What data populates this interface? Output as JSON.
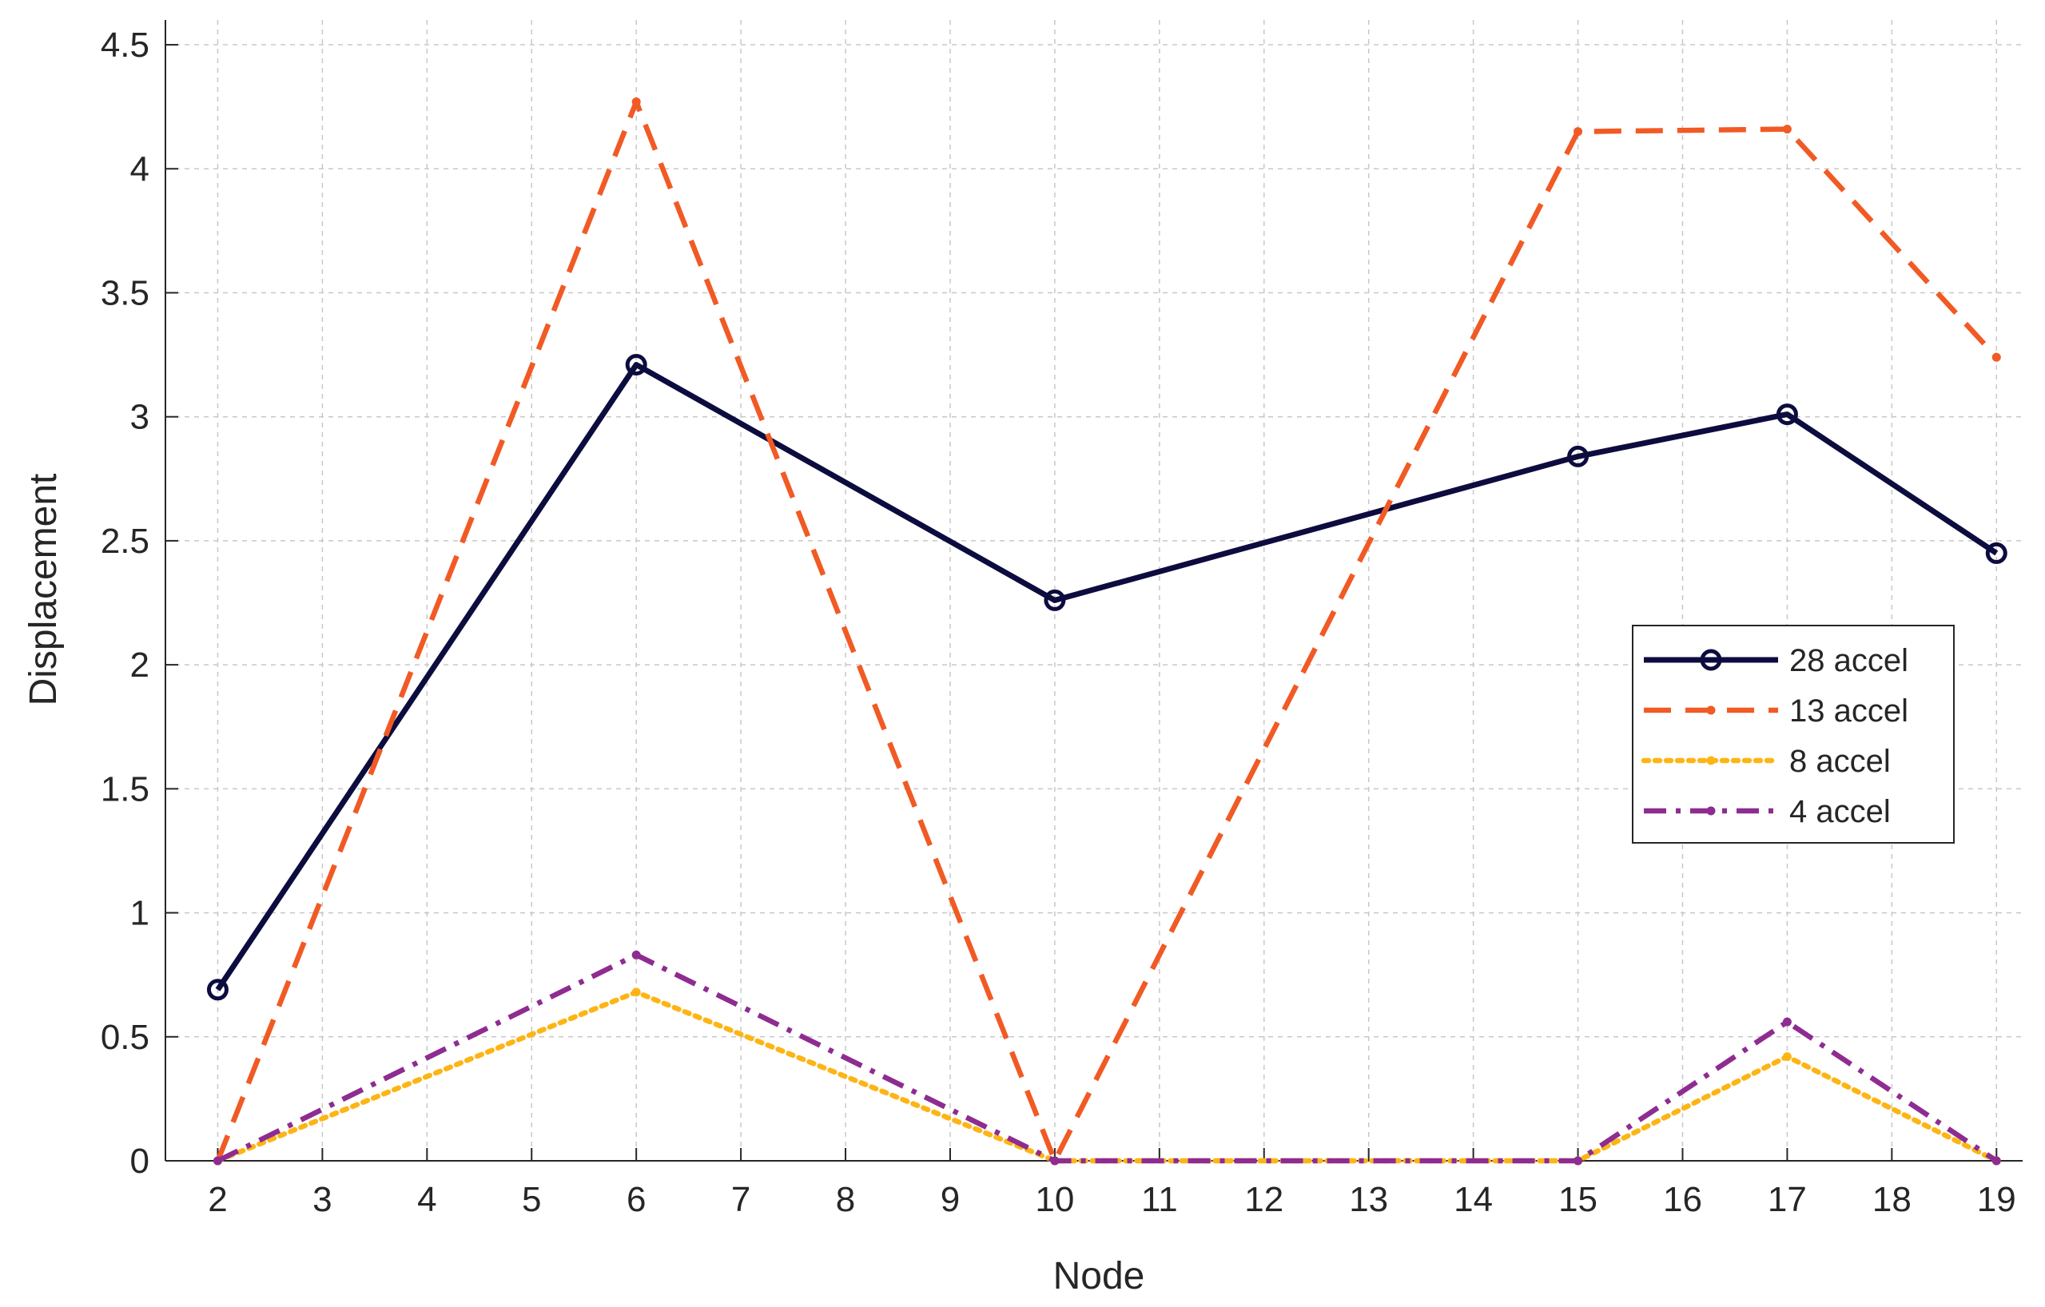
{
  "chart_data": {
    "type": "line",
    "title": "",
    "xlabel": "Node",
    "ylabel": "Displacement",
    "x": [
      2,
      6,
      10,
      15,
      17,
      19
    ],
    "xlim": [
      1.5,
      19.25
    ],
    "ylim": [
      0,
      4.6
    ],
    "xticks": [
      2,
      3,
      4,
      5,
      6,
      7,
      8,
      9,
      10,
      11,
      12,
      13,
      14,
      15,
      16,
      17,
      18,
      19
    ],
    "yticks": [
      0,
      0.5,
      1,
      1.5,
      2,
      2.5,
      3,
      3.5,
      4,
      4.5
    ],
    "ytick_labels": [
      "0",
      "0.5",
      "1",
      "1.5",
      "2",
      "2.5",
      "3",
      "3.5",
      "4",
      "4.5"
    ],
    "grid": true,
    "legend_position": "right",
    "series": [
      {
        "name": "28 accel",
        "values": [
          0.69,
          3.21,
          2.26,
          2.84,
          3.01,
          2.45
        ],
        "color": "#0c0c3f",
        "line_style": "solid",
        "marker": "open-circle"
      },
      {
        "name": "13 accel",
        "values": [
          0,
          4.27,
          0,
          4.15,
          4.16,
          3.24
        ],
        "color": "#f15a24",
        "line_style": "dashed",
        "marker": "dot"
      },
      {
        "name": "8 accel",
        "values": [
          0,
          0.68,
          0,
          0,
          0.42,
          0
        ],
        "color": "#fdb515",
        "line_style": "dotted",
        "marker": "dot"
      },
      {
        "name": "4 accel",
        "values": [
          0,
          0.83,
          0,
          0,
          0.56,
          0
        ],
        "color": "#8e2c91",
        "line_style": "dash-dot",
        "marker": "dot"
      }
    ]
  }
}
